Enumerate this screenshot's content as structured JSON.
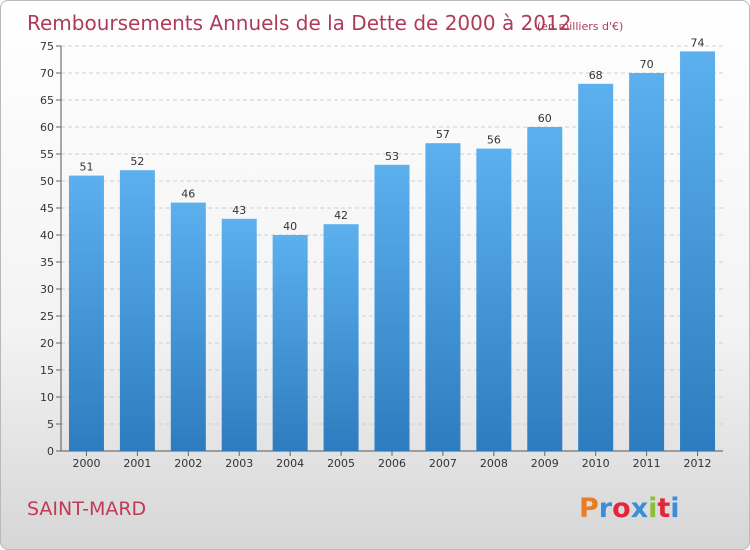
{
  "chart_data": {
    "type": "bar",
    "title": "Remboursements Annuels de la Dette de 2000 à 2012",
    "subtitle": "(en milliers d'€)",
    "categories": [
      "2000",
      "2001",
      "2002",
      "2003",
      "2004",
      "2005",
      "2006",
      "2007",
      "2008",
      "2009",
      "2010",
      "2011",
      "2012"
    ],
    "values": [
      51,
      52,
      46,
      43,
      40,
      42,
      53,
      57,
      56,
      60,
      68,
      70,
      74
    ],
    "ylim": [
      0,
      75
    ],
    "yticks": [
      0,
      5,
      10,
      15,
      20,
      25,
      30,
      35,
      40,
      45,
      50,
      55,
      60,
      65,
      70,
      75
    ],
    "xlabel": "",
    "ylabel": "",
    "grid": true,
    "bar_color": "#4a9fe0"
  },
  "footer": {
    "city": "SAINT-MARD",
    "logo": "Proxiti",
    "logo_colors": [
      "#e97d24",
      "#3a8fd6",
      "#e2273d",
      "#3a8fd6",
      "#8bbf3a",
      "#e2273d",
      "#3a8fd6"
    ]
  }
}
